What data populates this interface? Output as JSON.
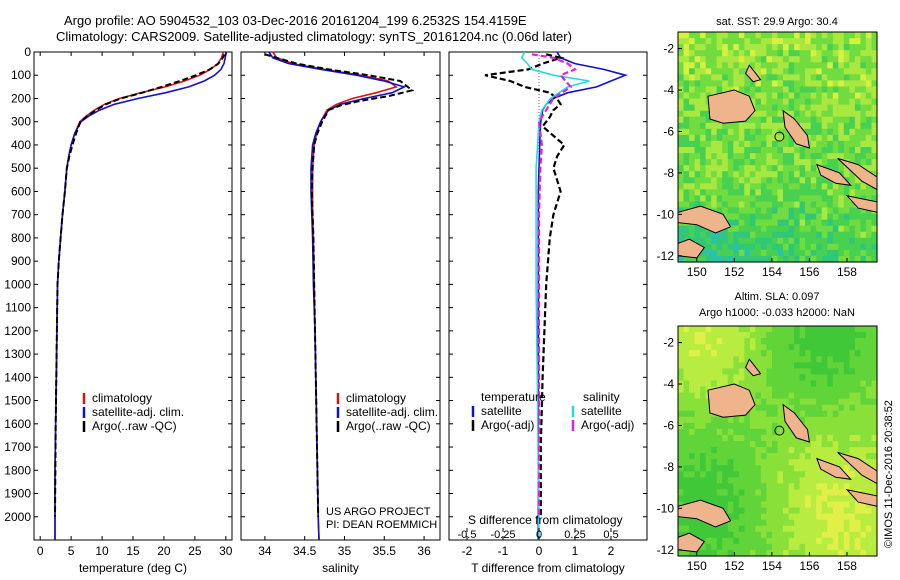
{
  "header": {
    "line1": "Argo profile: AO 5904532_103 03-Dec-2016 20161204_199 6.2532S 154.4159E",
    "line2": "Climatology: CARS2009. Satellite-adjusted climatology: synTS_20161204.nc (0.06d later)"
  },
  "credits": {
    "project": "US ARGO PROJECT",
    "pi": "PI: DEAN ROEMMICH",
    "imos": "©IMOS 11-Dec-2016 20:38:52"
  },
  "colors": {
    "climatology": "#dd1111",
    "satellite": "#1111cc",
    "argo": "#000000",
    "sat_salinity": "#22dddd",
    "argo_salinity": "#dd22dd",
    "land": "#f0b48c"
  },
  "chart_data": [
    {
      "type": "line",
      "id": "temperature",
      "xlabel": "temperature (deg C)",
      "ylabel": "",
      "xlim": [
        -1,
        31
      ],
      "ylim": [
        2100,
        0
      ],
      "xticks": [
        0,
        5,
        10,
        15,
        20,
        25,
        30
      ],
      "yticks": [
        0,
        100,
        200,
        300,
        400,
        500,
        600,
        700,
        800,
        900,
        1000,
        1100,
        1200,
        1300,
        1400,
        1500,
        1600,
        1700,
        1800,
        1900,
        2000
      ],
      "legend": [
        "climatology",
        "satellite-adj. clim.",
        "Argo(..raw -QC)"
      ],
      "series": [
        {
          "name": "climatology",
          "color": "#dd1111",
          "dashed": false,
          "x": [
            29.6,
            29.3,
            28.7,
            27.5,
            25.8,
            23.3,
            20.2,
            16.3,
            12.8,
            10.4,
            8.8,
            7.5,
            6.4,
            5.6,
            5.0,
            4.6,
            4.3,
            4.0,
            3.6,
            3.3,
            3.0,
            2.8,
            2.7,
            2.6,
            2.5,
            2.4,
            2.4
          ],
          "y": [
            0,
            25,
            50,
            75,
            100,
            125,
            150,
            175,
            200,
            225,
            250,
            275,
            300,
            350,
            400,
            450,
            500,
            600,
            700,
            800,
            900,
            1000,
            1200,
            1400,
            1600,
            1800,
            2100
          ]
        },
        {
          "name": "satellite-adj. clim.",
          "color": "#1111cc",
          "dashed": false,
          "x": [
            30.1,
            29.9,
            29.7,
            29.2,
            28.2,
            26.5,
            24.0,
            20.3,
            15.8,
            12.0,
            9.6,
            7.9,
            6.6,
            5.6,
            5.0,
            4.6,
            4.3,
            4.0,
            3.6,
            3.3,
            3.0,
            2.8,
            2.7,
            2.6,
            2.5,
            2.4,
            2.4
          ],
          "y": [
            0,
            25,
            50,
            75,
            100,
            125,
            150,
            175,
            200,
            225,
            250,
            275,
            300,
            350,
            400,
            450,
            500,
            600,
            700,
            800,
            900,
            1000,
            1200,
            1400,
            1600,
            1800,
            2100
          ]
        },
        {
          "name": "Argo(..raw -QC)",
          "color": "#000000",
          "dashed": true,
          "x": [
            29.8,
            29.5,
            28.8,
            27.4,
            25.2,
            22.6,
            19.6,
            16.5,
            13.0,
            10.6,
            9.0,
            7.6,
            6.5,
            5.8,
            5.2,
            4.7,
            4.3,
            4.0,
            3.6,
            3.3,
            3.0,
            2.8,
            2.7,
            2.6,
            2.5,
            2.4
          ],
          "y": [
            10,
            25,
            50,
            75,
            100,
            125,
            150,
            175,
            200,
            225,
            250,
            275,
            300,
            350,
            400,
            450,
            500,
            600,
            700,
            800,
            900,
            1000,
            1200,
            1400,
            1600,
            2000
          ]
        }
      ]
    },
    {
      "type": "line",
      "id": "salinity",
      "xlabel": "salinity",
      "ylabel": "",
      "xlim": [
        33.7,
        36.2
      ],
      "ylim": [
        2100,
        0
      ],
      "xticks": [
        34,
        34.5,
        35,
        35.5,
        36
      ],
      "legend": [
        "climatology",
        "satellite-adj. clim.",
        "Argo(..raw -QC)"
      ],
      "series": [
        {
          "name": "climatology",
          "color": "#dd1111",
          "dashed": false,
          "x": [
            34.1,
            34.15,
            34.35,
            34.75,
            35.2,
            35.55,
            35.65,
            35.4,
            35.1,
            34.9,
            34.78,
            34.7,
            34.65,
            34.62,
            34.6,
            34.6,
            34.6,
            34.61,
            34.62,
            34.63,
            34.64,
            34.65,
            34.66,
            34.67,
            34.68
          ],
          "y": [
            0,
            25,
            50,
            75,
            100,
            125,
            150,
            175,
            200,
            225,
            250,
            300,
            350,
            400,
            500,
            600,
            700,
            800,
            1000,
            1200,
            1400,
            1600,
            1800,
            2000,
            2100
          ]
        },
        {
          "name": "satellite-adj. clim.",
          "color": "#1111cc",
          "dashed": false,
          "x": [
            34.05,
            34.1,
            34.3,
            34.7,
            35.15,
            35.5,
            35.75,
            35.6,
            35.25,
            34.95,
            34.8,
            34.7,
            34.64,
            34.6,
            34.58,
            34.58,
            34.59,
            34.6,
            34.61,
            34.63,
            34.64,
            34.65,
            34.66,
            34.67,
            34.68
          ],
          "y": [
            0,
            25,
            50,
            75,
            100,
            125,
            150,
            175,
            200,
            225,
            250,
            300,
            350,
            400,
            500,
            600,
            700,
            800,
            1000,
            1200,
            1400,
            1600,
            1800,
            2000,
            2100
          ]
        },
        {
          "name": "Argo(..raw -QC)",
          "color": "#000000",
          "dashed": true,
          "x": [
            34.0,
            34.15,
            34.4,
            34.8,
            35.3,
            35.7,
            35.85,
            35.55,
            35.2,
            34.95,
            34.8,
            34.72,
            34.66,
            34.62,
            34.6,
            34.59,
            34.6,
            34.61,
            34.62,
            34.63,
            34.64,
            34.65,
            34.66,
            34.67
          ],
          "y": [
            10,
            25,
            50,
            75,
            100,
            125,
            165,
            190,
            210,
            230,
            250,
            300,
            350,
            400,
            500,
            600,
            700,
            800,
            1000,
            1200,
            1400,
            1600,
            1800,
            2000
          ]
        }
      ]
    },
    {
      "type": "line",
      "id": "differences",
      "xlabel_bottom": "T difference from climatology",
      "xlabel_top": "S difference from climatology",
      "xlim": [
        -2.5,
        3
      ],
      "ylim": [
        2100,
        0
      ],
      "xticks": [
        -2,
        -1,
        0,
        1,
        2
      ],
      "sticks": [
        {
          "v": -0.5,
          "label": "-0.5"
        },
        {
          "v": -0.25,
          "label": "-0.25"
        },
        {
          "v": 0,
          "label": "0"
        },
        {
          "v": 0.25,
          "label": "0.25"
        },
        {
          "v": 0.5,
          "label": "0.5"
        }
      ],
      "legend_left_title": "temperature",
      "legend_right_title": "salinity",
      "legend": [
        "satellite",
        "Argo(-adj)",
        "satellite",
        "Argo(-adj)"
      ],
      "series": [
        {
          "name": "satellite",
          "variable": "temperature",
          "color": "#1111cc",
          "dashed": false,
          "x": [
            0.5,
            0.6,
            1.0,
            1.8,
            2.4,
            2.0,
            1.6,
            0.8,
            0.4,
            0.2,
            0.1,
            0.05,
            0.03,
            0.02,
            0.0,
            -0.02,
            -0.02,
            -0.02,
            -0.02,
            -0.02,
            -0.02
          ],
          "y": [
            0,
            25,
            50,
            75,
            100,
            125,
            150,
            175,
            200,
            225,
            250,
            300,
            350,
            400,
            500,
            600,
            800,
            1000,
            1400,
            1800,
            2100
          ]
        },
        {
          "name": "Argo(-adj)",
          "variable": "temperature",
          "color": "#000000",
          "dashed": true,
          "x": [
            0.2,
            0.6,
            0.1,
            -0.3,
            -1.5,
            -0.8,
            -0.4,
            0.3,
            0.5,
            0.6,
            0.4,
            0.3,
            0.1,
            0.7,
            0.5,
            0.4,
            0.6,
            0.4,
            0.3,
            0.25,
            0.2,
            0.15,
            0.1,
            0.05,
            0.05
          ],
          "y": [
            10,
            25,
            50,
            75,
            100,
            125,
            150,
            175,
            200,
            225,
            250,
            280,
            320,
            400,
            450,
            500,
            600,
            700,
            800,
            900,
            1000,
            1200,
            1400,
            1700,
            2000
          ]
        },
        {
          "name": "satellite",
          "variable": "salinity",
          "color": "#22dddd",
          "dashed": false,
          "x": [
            -0.1,
            -0.12,
            -0.08,
            -0.05,
            0.1,
            0.35,
            0.2,
            0.08,
            0.02,
            0.0,
            -0.01,
            -0.02,
            -0.02,
            -0.02,
            -0.01,
            0.0
          ],
          "y": [
            0,
            25,
            50,
            75,
            100,
            125,
            150,
            200,
            250,
            300,
            400,
            500,
            700,
            1000,
            1500,
            2100
          ]
        },
        {
          "name": "Argo(-adj)",
          "variable": "salinity",
          "color": "#dd22dd",
          "dashed": true,
          "x": [
            -0.05,
            0.1,
            0.2,
            0.25,
            0.15,
            0.22,
            0.1,
            0.05,
            0.0,
            0.02,
            0.01,
            0.0,
            0.0,
            0.0
          ],
          "y": [
            10,
            25,
            50,
            75,
            100,
            150,
            200,
            250,
            300,
            400,
            500,
            700,
            1000,
            2000
          ]
        }
      ]
    },
    {
      "type": "heatmap",
      "id": "sst_map",
      "title": "sat. SST: 29.9  Argo: 30.4",
      "xlim": [
        149,
        159.6
      ],
      "ylim": [
        -12.3,
        -1.2
      ],
      "xticks": [
        150,
        152,
        154,
        156,
        158
      ],
      "yticks": [
        -2,
        -4,
        -6,
        -8,
        -10,
        -12
      ],
      "argo_position": [
        154.4,
        -6.25
      ]
    },
    {
      "type": "heatmap",
      "id": "sla_map",
      "title_line1": "Altim. SLA: 0.097",
      "title_line2": "Argo h1000: -0.033 h2000: NaN",
      "xlim": [
        149,
        159.6
      ],
      "ylim": [
        -12.3,
        -1.2
      ],
      "xticks": [
        150,
        152,
        154,
        156,
        158
      ],
      "yticks": [
        -2,
        -4,
        -6,
        -8,
        -10,
        -12
      ],
      "argo_position": [
        154.4,
        -6.25
      ]
    }
  ]
}
